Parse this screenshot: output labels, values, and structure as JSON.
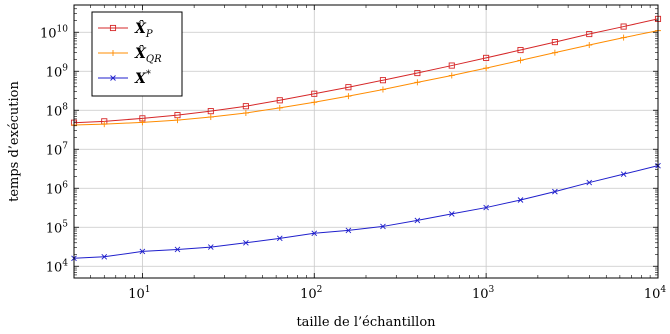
{
  "chart_data": {
    "type": "line",
    "xlabel": "taille de l’échantillon",
    "ylabel": "temps d’exécution",
    "xscale": "log",
    "yscale": "log",
    "xlim": [
      4,
      10000
    ],
    "ylim": [
      5000,
      50000000000
    ],
    "grid": true,
    "legend_position": "top-left",
    "x_ticks": [
      {
        "value": 10,
        "base": "10",
        "exp": "1"
      },
      {
        "value": 100,
        "base": "10",
        "exp": "2"
      },
      {
        "value": 1000,
        "base": "10",
        "exp": "3"
      },
      {
        "value": 10000,
        "base": "10",
        "exp": "4"
      }
    ],
    "y_ticks": [
      {
        "value": 10000,
        "base": "10",
        "exp": "4"
      },
      {
        "value": 100000,
        "base": "10",
        "exp": "5"
      },
      {
        "value": 1000000,
        "base": "10",
        "exp": "6"
      },
      {
        "value": 10000000,
        "base": "10",
        "exp": "7"
      },
      {
        "value": 100000000,
        "base": "10",
        "exp": "8"
      },
      {
        "value": 1000000000,
        "base": "10",
        "exp": "9"
      },
      {
        "value": 10000000000,
        "base": "10",
        "exp": "10"
      }
    ],
    "x": [
      4,
      6,
      10,
      16,
      25,
      40,
      63,
      100,
      158,
      251,
      398,
      631,
      1000,
      1585,
      2512,
      3981,
      6310,
      10000
    ],
    "series": [
      {
        "name": "X̂_P",
        "label_main": "X̂",
        "label_sub": "P",
        "label_sup": "",
        "color": "#d62728",
        "marker": "square",
        "values": [
          48000000,
          52000000,
          62000000,
          75000000,
          95000000,
          127000000,
          180000000,
          265000000,
          390000000,
          590000000,
          900000000,
          1400000000,
          2200000000,
          3500000000,
          5600000000,
          9000000000,
          14000000000,
          22000000000
        ]
      },
      {
        "name": "X̂_QR",
        "label_main": "X̂",
        "label_sub": "QR",
        "label_sup": "",
        "color": "#ff8c00",
        "marker": "plus",
        "values": [
          42000000,
          44000000,
          49000000,
          56000000,
          67000000,
          85000000,
          115000000,
          160000000,
          230000000,
          340000000,
          520000000,
          780000000,
          1200000000,
          1900000000,
          3000000000,
          4700000000,
          7300000000,
          11000000000
        ]
      },
      {
        "name": "X*",
        "label_main": "X",
        "label_sub": "",
        "label_sup": "*",
        "color": "#1f1fcc",
        "marker": "cross",
        "values": [
          16000,
          17500,
          24000,
          27000,
          31000,
          40000,
          52000,
          70000,
          83000,
          105000,
          150000,
          220000,
          320000,
          500000,
          820000,
          1400000,
          2300000,
          3800000
        ]
      }
    ]
  }
}
